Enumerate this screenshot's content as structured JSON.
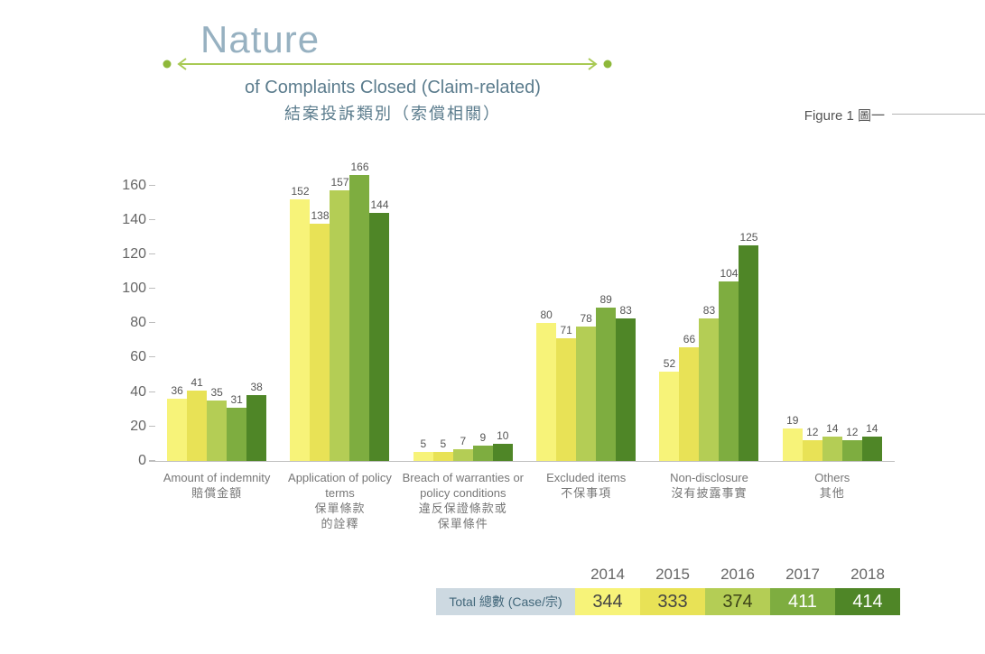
{
  "header": {
    "title_line1": "Nature",
    "title_line2": "of Complaints Closed (Claim-related)",
    "title_line3": "結案投訴類別（索償相關）",
    "figure_label": "Figure 1 圖一"
  },
  "colors": {
    "title_light": "#97b1c1",
    "title_dark": "#5b7c8d",
    "arrow_line": "#a9ca55",
    "arrow_dot": "#8eb83a",
    "axis_line": "#c0c0c0",
    "totals_label_bg": "#cdd9e1"
  },
  "chart_data": {
    "type": "bar",
    "title": "Nature of Complaints Closed (Claim-related) 結案投訴類別（索償相關）",
    "xlabel": "",
    "ylabel": "",
    "ylim": [
      0,
      176
    ],
    "yticks": [
      0,
      20,
      40,
      60,
      80,
      100,
      120,
      140,
      160
    ],
    "grid": false,
    "legend_position": "none",
    "categories": [
      {
        "en": "Amount of indemnity",
        "zh": "賠償金額"
      },
      {
        "en": "Application of policy terms",
        "zh": "保單條款\n的詮釋"
      },
      {
        "en": "Breach of warranties or policy conditions",
        "zh": "違反保證條款或\n保單條件"
      },
      {
        "en": "Excluded items",
        "zh": "不保事項"
      },
      {
        "en": "Non-disclosure",
        "zh": "沒有披露事實"
      },
      {
        "en": "Others",
        "zh": "其他"
      }
    ],
    "series": [
      {
        "name": "2014",
        "color": "#f7f379",
        "values": [
          36,
          152,
          5,
          80,
          52,
          19
        ]
      },
      {
        "name": "2015",
        "color": "#e8e256",
        "values": [
          41,
          138,
          5,
          71,
          66,
          12
        ]
      },
      {
        "name": "2016",
        "color": "#b4cd55",
        "values": [
          35,
          157,
          7,
          78,
          83,
          14
        ]
      },
      {
        "name": "2017",
        "color": "#7ead40",
        "values": [
          31,
          166,
          9,
          89,
          104,
          12
        ]
      },
      {
        "name": "2018",
        "color": "#4f8627",
        "values": [
          38,
          144,
          10,
          83,
          125,
          14
        ]
      }
    ]
  },
  "totals": {
    "label": "Total 總數 (Case/宗)",
    "years": [
      "2014",
      "2015",
      "2016",
      "2017",
      "2018"
    ],
    "values": [
      344,
      333,
      374,
      411,
      414
    ],
    "cell_text_colors": [
      "#444444",
      "#444444",
      "#3c4318",
      "#ffffff",
      "#ffffff"
    ]
  }
}
